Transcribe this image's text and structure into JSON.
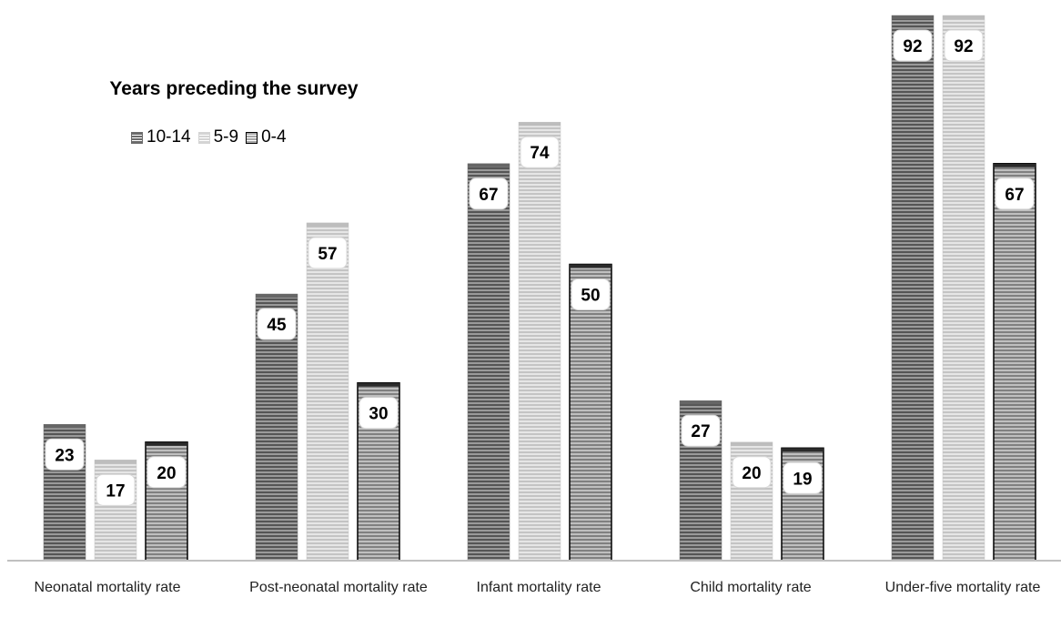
{
  "chart_data": {
    "type": "bar",
    "legend_title": "Years preceding the survey",
    "legend_placement": "top-left",
    "categories": [
      "Neonatal mortality rate",
      "Post-neonatal mortality rate",
      "Infant mortality rate",
      "Child mortality rate",
      "Under-five mortality rate"
    ],
    "series": [
      {
        "name": "10-14",
        "values": [
          23,
          45,
          67,
          27,
          92
        ],
        "color": "#6b6b6b"
      },
      {
        "name": "5-9",
        "values": [
          17,
          57,
          74,
          20,
          92
        ],
        "color": "#cfcfcf"
      },
      {
        "name": "0-4",
        "values": [
          20,
          30,
          50,
          19,
          67
        ],
        "color": "#9a9a9a"
      }
    ],
    "data_labels": true,
    "grid": false,
    "ylim": [
      0,
      92
    ]
  }
}
